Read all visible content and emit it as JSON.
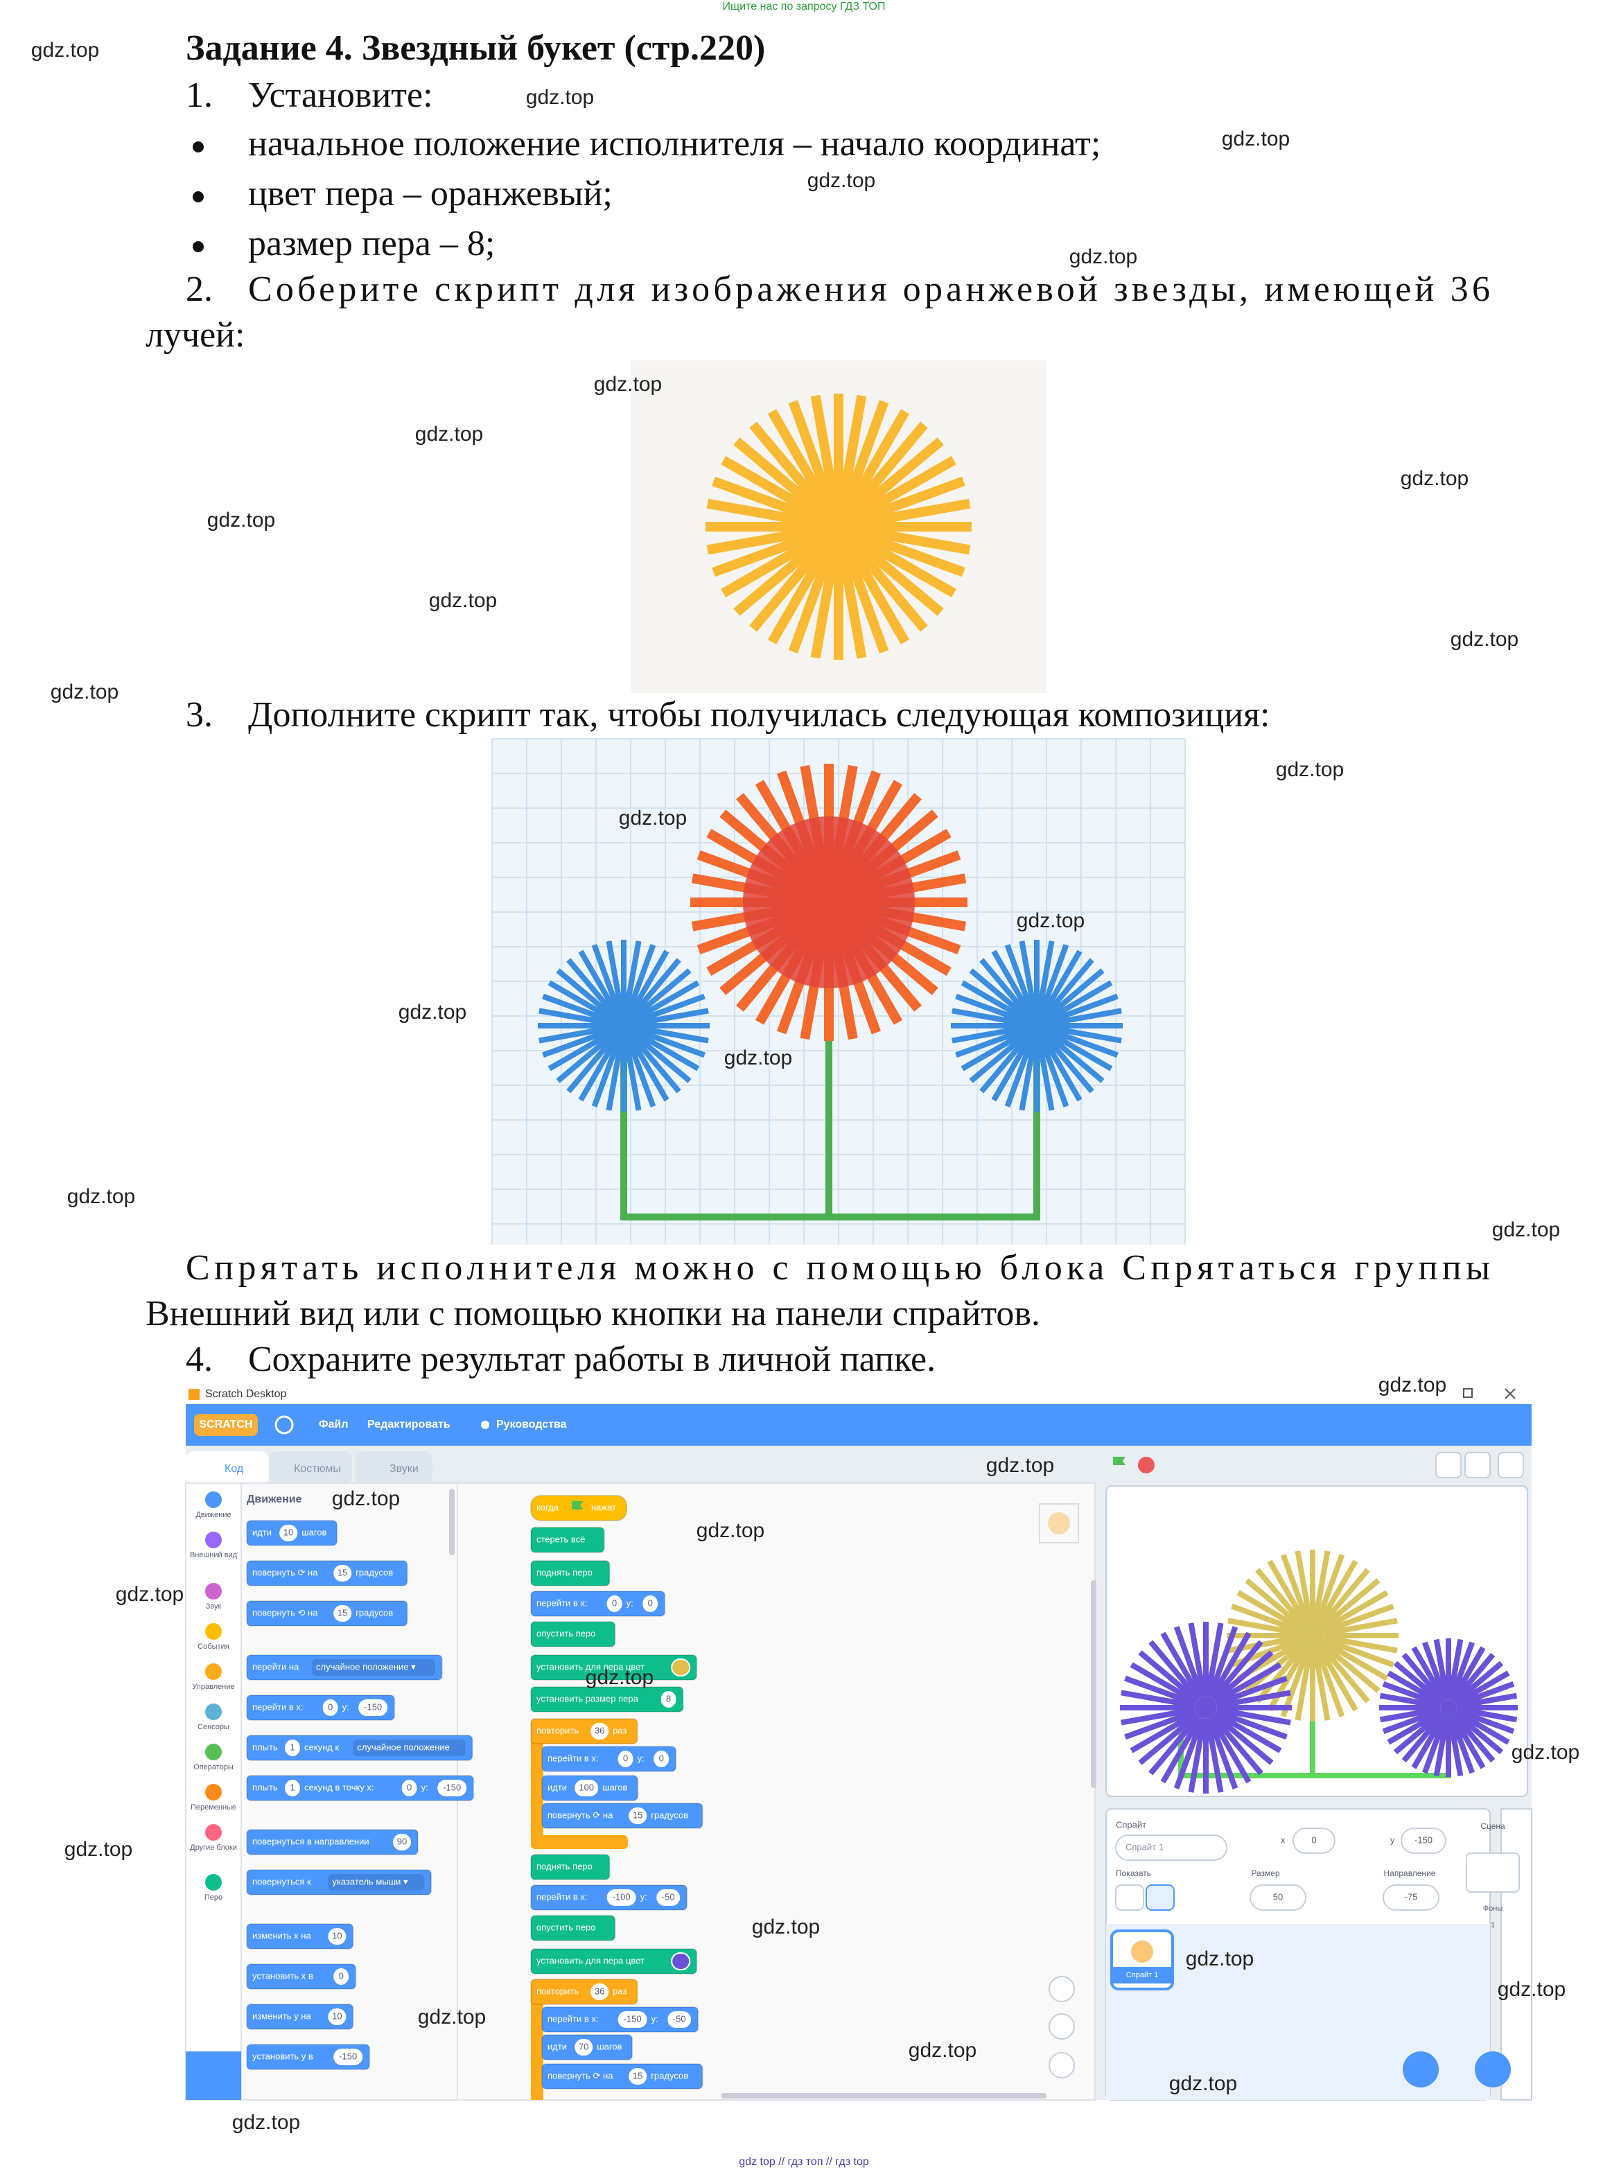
{
  "header": {
    "notice": "Ищите нас по запросу ГДЗ ТОП"
  },
  "task": {
    "title": "Задание 4. Звездный букет (стр.220)",
    "step1": {
      "number": "1.",
      "text": "Установите:"
    },
    "bullets": [
      "начальное положение исполнителя – начало координат;",
      "цвет пера – оранжевый;",
      "размер пера – 8;"
    ],
    "step2": {
      "number": "2.",
      "lines": [
        "Соберите скрипт для изображения оранжевой звезды, имеющей 36",
        "лучей:"
      ]
    },
    "step3": {
      "number": "3.",
      "text": "Дополните скрипт так, чтобы получилась следующая композиция:"
    },
    "note_lines": [
      "Спрятать исполнителя можно с помощью блока Спрятаться группы",
      "Внешний вид или с помощью кнопки на панели спрайтов."
    ],
    "step4": {
      "number": "4.",
      "text": "Сохраните результат работы в личной папке."
    }
  },
  "screenshot": {
    "window_title": "Scratch Desktop",
    "logo": "SCRATCH",
    "menu": [
      "Файл",
      "Редактировать",
      "Руководства"
    ],
    "tabs": [
      "Код",
      "Костюмы",
      "Звуки"
    ],
    "categories": [
      "Движение",
      "Внешний вид",
      "Звук",
      "События",
      "Управление",
      "Сенсоры",
      "Операторы",
      "Переменные",
      "Другие блоки",
      "Перо"
    ],
    "palette_heading": "Движение",
    "palette_blocks": [
      [
        "идти",
        {
          "input": "10"
        },
        "шагов"
      ],
      [
        "повернуть ⟳ на",
        {
          "input": "15"
        },
        "градусов"
      ],
      [
        "повернуть ⟲ на",
        {
          "input": "15"
        },
        "градусов"
      ],
      [
        "перейти на",
        {
          "menu": "случайное положение ▾"
        }
      ],
      [
        "перейти в x:",
        {
          "input": "0"
        },
        "y:",
        {
          "input": "-150"
        }
      ],
      [
        "плыть",
        {
          "input": "1"
        },
        "секунд к",
        {
          "menu": "случайное положение"
        }
      ],
      [
        "плыть",
        {
          "input": "1"
        },
        "секунд в точку x:",
        {
          "input": "0"
        },
        "y:",
        {
          "input": "-150"
        }
      ],
      [
        "повернуться в направлении",
        {
          "input": "90"
        }
      ],
      [
        "повернуться к",
        {
          "menu": "указатель мыши ▾"
        }
      ],
      [
        "изменить x на",
        {
          "input": "10"
        }
      ],
      [
        "установить x в",
        {
          "input": "0"
        }
      ],
      [
        "изменить у на",
        {
          "input": "10"
        }
      ],
      [
        "установить у в",
        {
          "input": "-150"
        }
      ]
    ],
    "script_blocks": [
      [
        "когда",
        {
          "flag": "#4cbf56"
        },
        "нажат"
      ],
      [
        "стереть всё"
      ],
      [
        "поднять перо"
      ],
      [
        "перейти в x:",
        {
          "input": "0"
        },
        "y:",
        {
          "input": "0"
        }
      ],
      [
        "опустить перо"
      ],
      [
        "установить для пера цвет",
        {
          "color": "#e0c04a"
        }
      ],
      [
        "установить размер пера",
        {
          "input": "8"
        }
      ],
      [
        "повторить",
        {
          "input": "36"
        },
        "раз"
      ],
      [
        "перейти в x:",
        {
          "input": "0"
        },
        "y:",
        {
          "input": "0"
        }
      ],
      [
        "идти",
        {
          "input": "100"
        },
        "шагов"
      ],
      [
        "повернуть ⟳ на",
        {
          "input": "15"
        },
        "градусов"
      ],
      [
        "поднять перо"
      ],
      [
        "перейти в x:",
        {
          "input": "-100"
        },
        "y:",
        {
          "input": "-50"
        }
      ],
      [
        "опустить перо"
      ],
      [
        "установить для пера цвет",
        {
          "color": "#6a52d8"
        }
      ],
      [
        "повторить",
        {
          "input": "36"
        },
        "раз"
      ],
      [
        "перейти в x:",
        {
          "input": "-150"
        },
        "y:",
        {
          "input": "-50"
        }
      ],
      [
        "идти",
        {
          "input": "70"
        },
        "шагов"
      ],
      [
        "повернуть ⟳ на",
        {
          "input": "15"
        },
        "градусов"
      ]
    ],
    "sprite_panel": {
      "label": "Спрайт",
      "name": "Спрайт 1",
      "x_label": "x",
      "x": "0",
      "y_label": "y",
      "y": "-150",
      "show_label": "Показать",
      "size_label": "Размер",
      "size": "50",
      "direction_label": "Направление",
      "direction": "-75",
      "sprite_tile": "Спрайт 1",
      "stage_label": "Сцена",
      "backdrops_label": "Фоны",
      "backdrops": "1"
    }
  },
  "watermarks": [
    "gdz.top",
    "gdz.top",
    "gdz.top",
    "gdz.top",
    "gdz.top",
    "gdz.top",
    "gdz.top",
    "gdz.top",
    "gdz.top",
    "gdz.top",
    "gdz.top",
    "gdz.top",
    "gdz.top",
    "gdz.top",
    "gdz.top",
    "gdz.top",
    "gdz.top",
    "gdz.top",
    "gdz.top",
    "gdz.top",
    "gdz.top",
    "gdz.top",
    "gdz.top",
    "gdz.top",
    "gdz.top",
    "gdz.top",
    "gdz.top",
    "gdz.top",
    "gdz.top",
    "gdz.top",
    "gdz.top",
    "gdz.top",
    "gdz.top",
    "gdz.top"
  ],
  "footer": "gdz top // гдз топ // гдз top"
}
